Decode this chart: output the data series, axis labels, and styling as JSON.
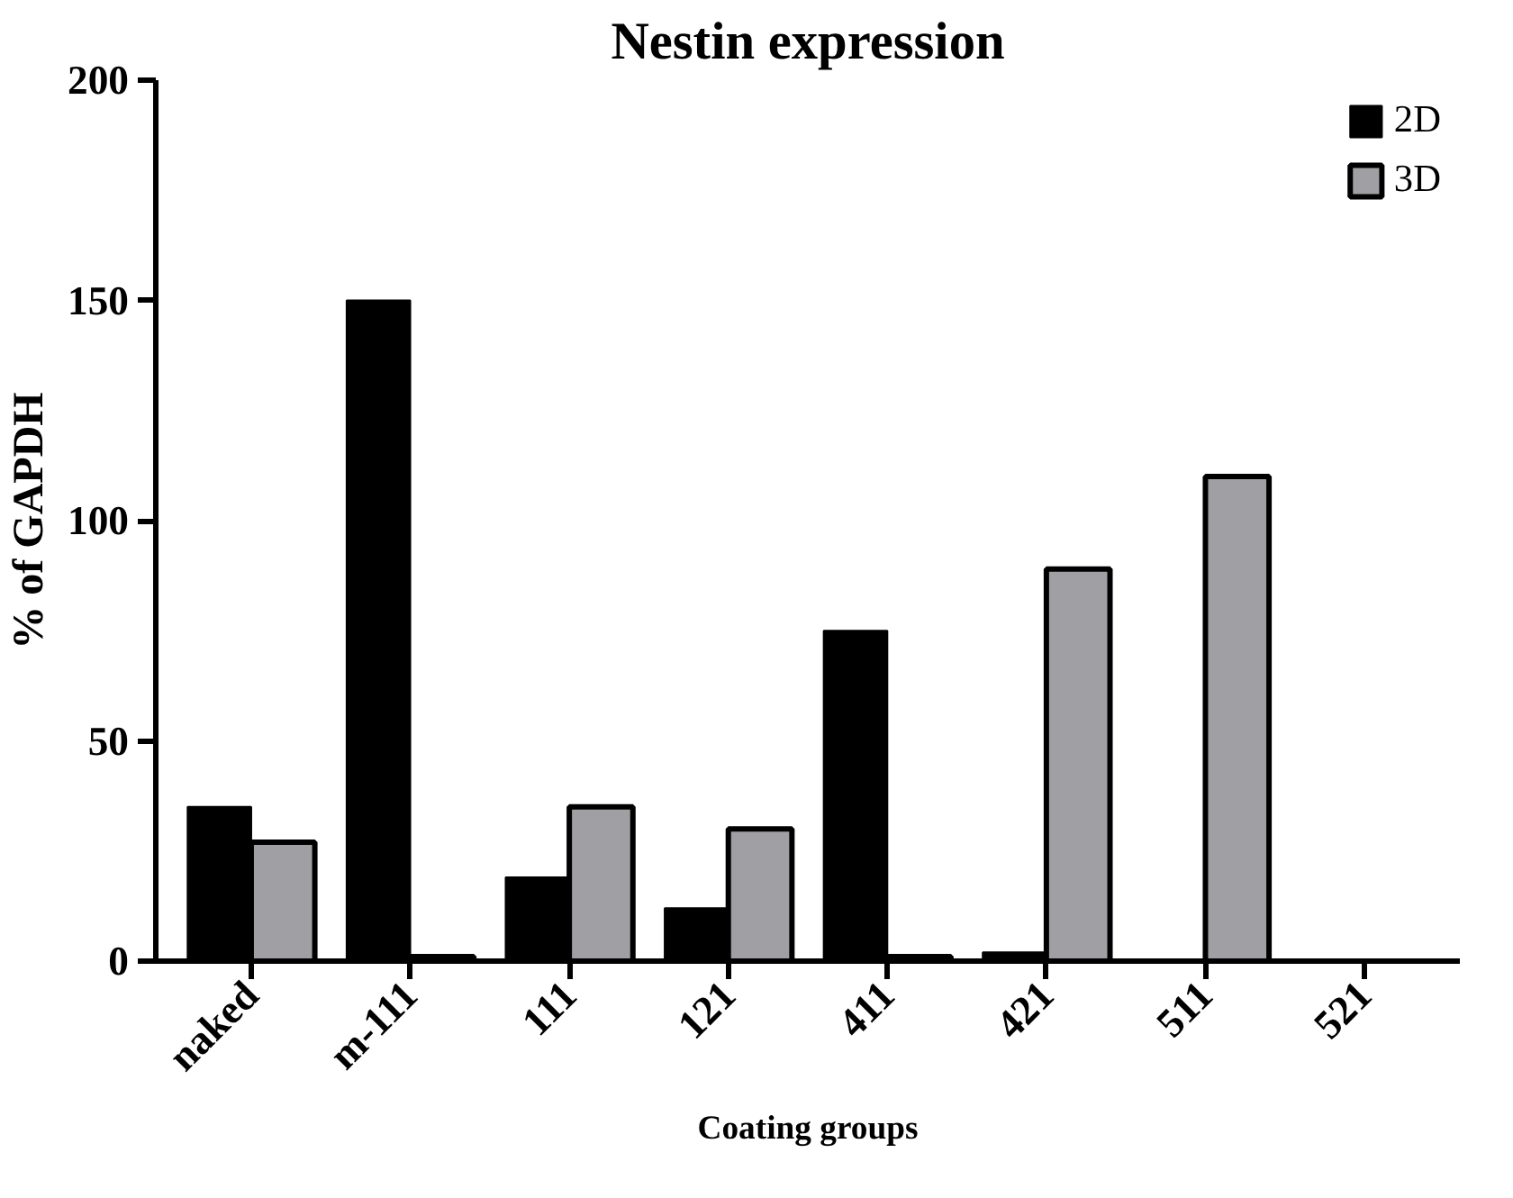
{
  "chart_data": {
    "type": "bar",
    "title": "Nestin expression",
    "xlabel": "Coating groups",
    "ylabel": "% of GAPDH",
    "categories": [
      "naked",
      "m-111",
      "111",
      "121",
      "411",
      "421",
      "511",
      "521"
    ],
    "series": [
      {
        "name": "2D",
        "color": "#000000",
        "values": [
          35,
          150,
          19,
          12,
          75,
          2,
          0,
          0
        ]
      },
      {
        "name": "3D",
        "color": "#a0a0a4",
        "values": [
          27,
          1,
          35,
          30,
          1,
          89,
          110,
          0
        ]
      }
    ],
    "ylim": [
      0,
      200
    ],
    "yticks": [
      0,
      50,
      100,
      150,
      200
    ],
    "grid": false,
    "legend": "top right"
  }
}
